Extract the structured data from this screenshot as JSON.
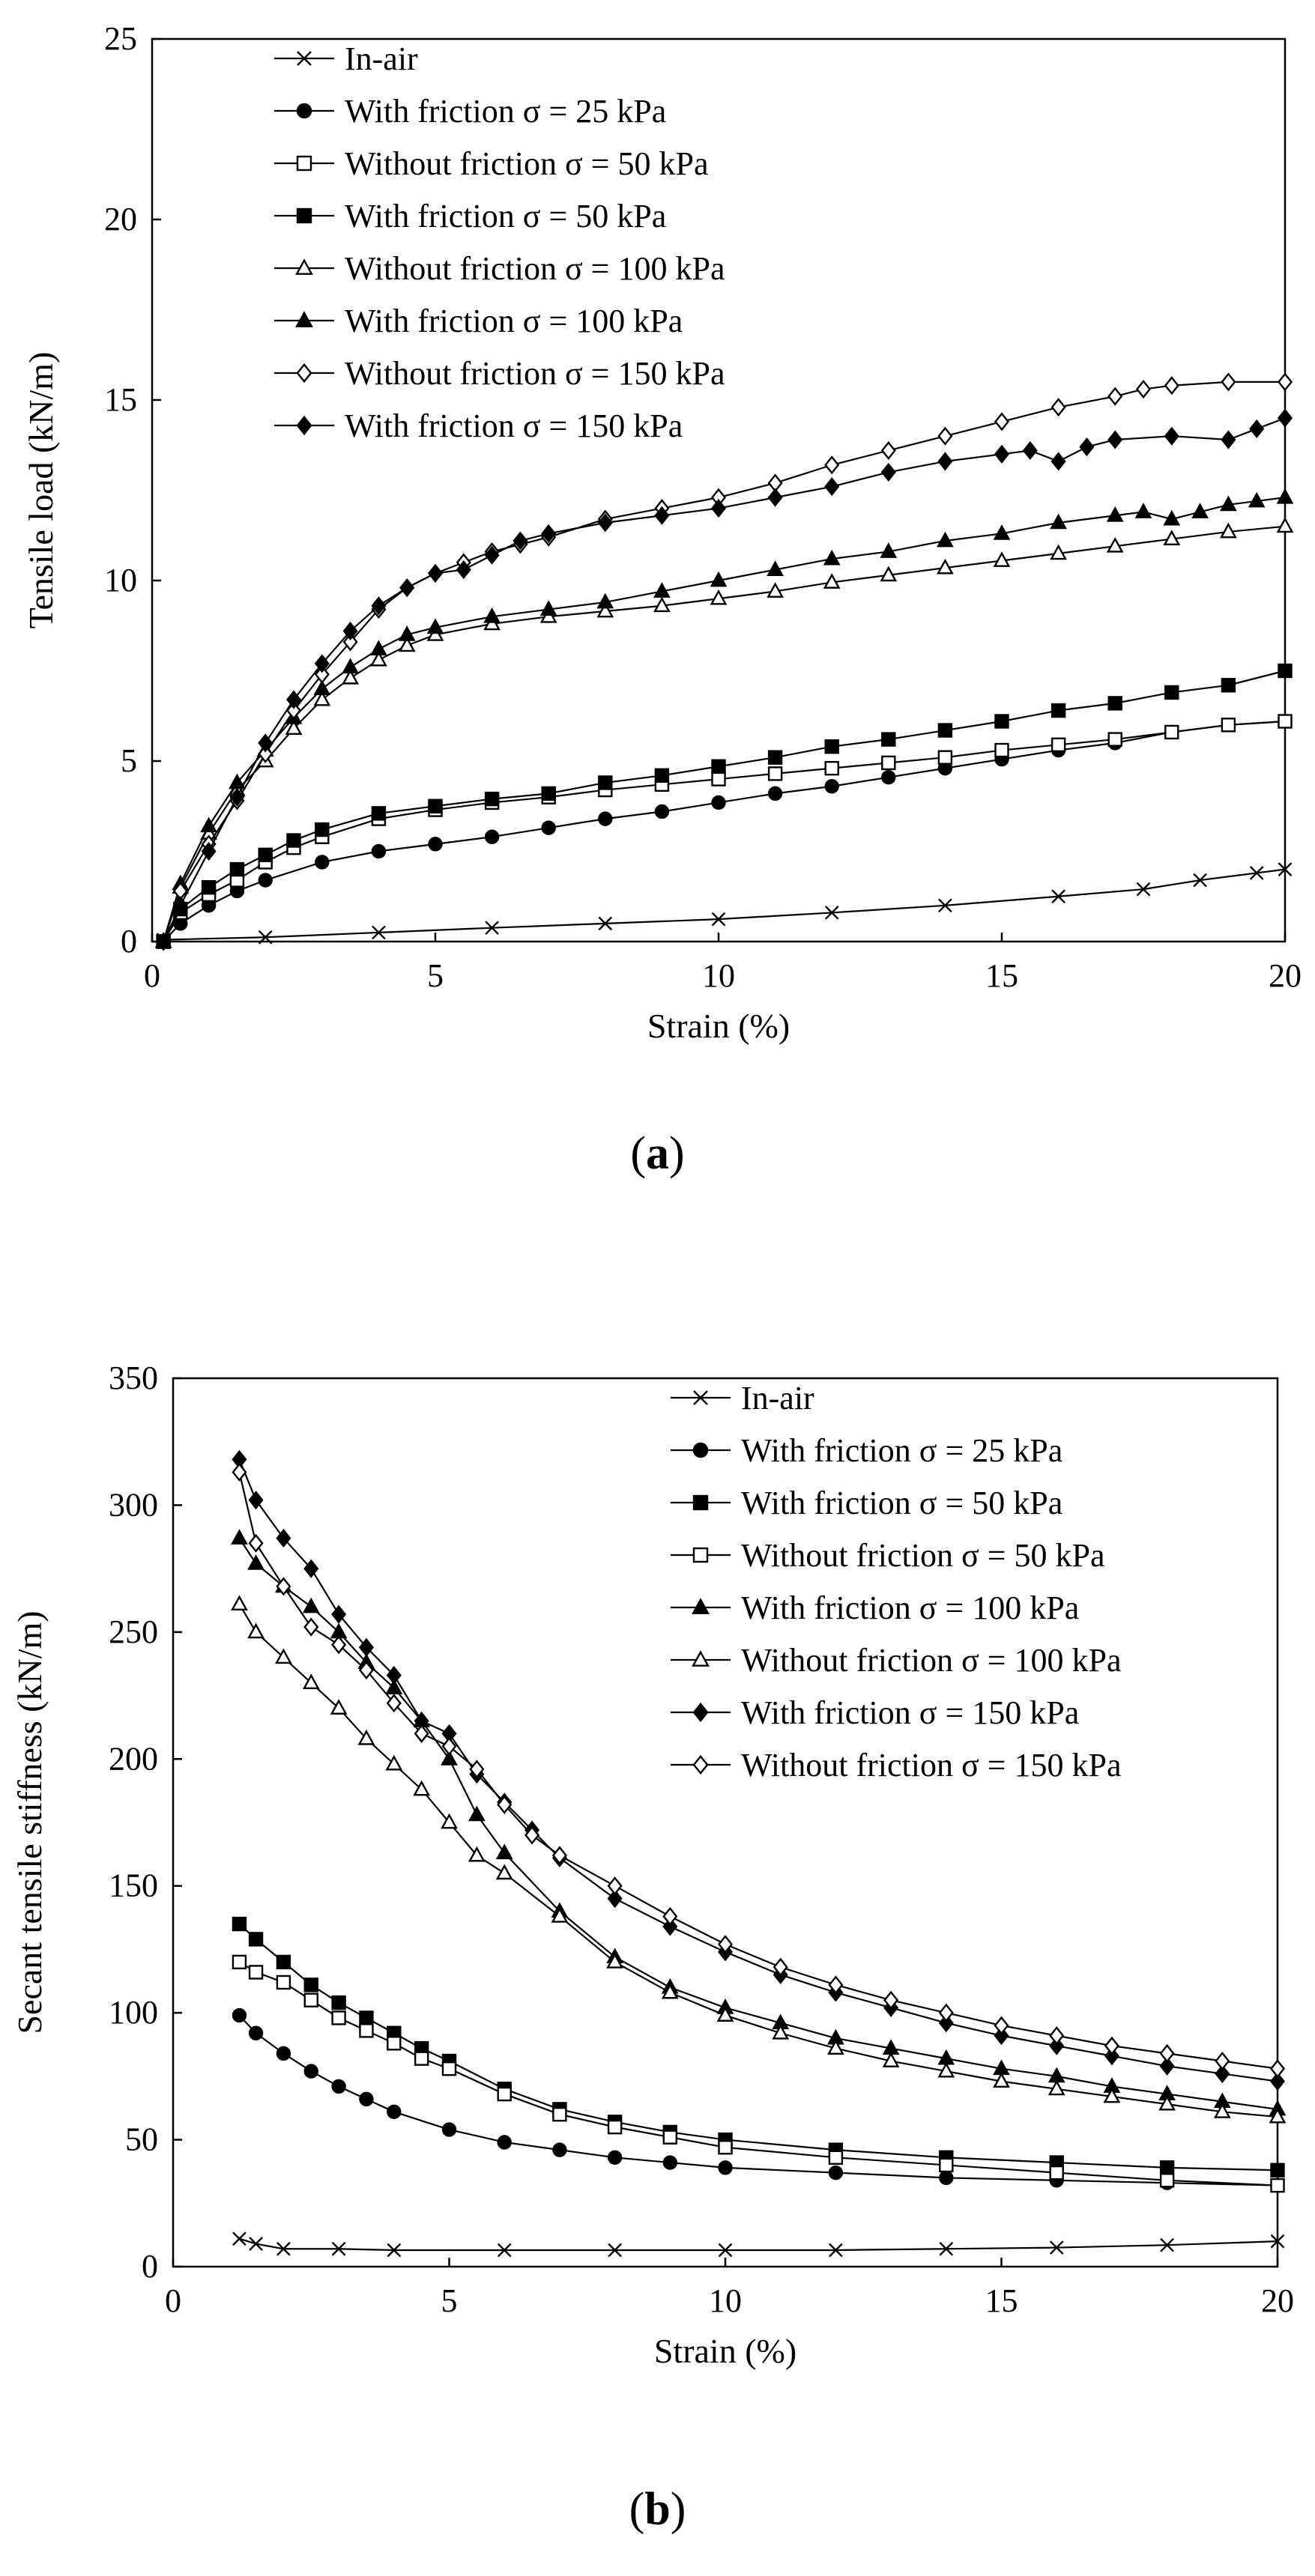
{
  "chart_data": [
    {
      "id": "a",
      "type": "line",
      "caption": "a",
      "xlabel": "Strain (%)",
      "ylabel": "Tensile load (kN/m)",
      "xlim": [
        0,
        20
      ],
      "ylim": [
        0,
        25
      ],
      "xticks": [
        0,
        5,
        10,
        15,
        20
      ],
      "yticks": [
        0,
        5,
        10,
        15,
        20,
        25
      ],
      "legend_position": "top-left",
      "series": [
        {
          "name": "In-air",
          "marker": "x",
          "x": [
            0.2,
            2,
            4,
            6,
            8,
            10,
            12,
            14,
            16,
            17.5,
            18.5,
            19.5,
            20
          ],
          "y": [
            0.05,
            0.12,
            0.25,
            0.38,
            0.5,
            0.62,
            0.8,
            1.0,
            1.25,
            1.45,
            1.7,
            1.9,
            2.0
          ]
        },
        {
          "name": "With friction σ = 25 kPa",
          "marker": "circle-filled",
          "x": [
            0.2,
            0.5,
            1,
            1.5,
            2,
            3,
            4,
            5,
            6,
            7,
            8,
            9,
            10,
            11,
            12,
            13,
            14,
            15,
            16,
            17,
            18,
            19,
            20
          ],
          "y": [
            0,
            0.5,
            1.0,
            1.4,
            1.7,
            2.2,
            2.5,
            2.7,
            2.9,
            3.15,
            3.4,
            3.6,
            3.85,
            4.1,
            4.3,
            4.55,
            4.8,
            5.05,
            5.3,
            5.5,
            5.8,
            6.0,
            6.1
          ]
        },
        {
          "name": "Without friction σ = 50 kPa",
          "marker": "square-open",
          "x": [
            0.2,
            0.5,
            1,
            1.5,
            2,
            2.5,
            3,
            4,
            5,
            6,
            7,
            8,
            9,
            10,
            11,
            12,
            13,
            14,
            15,
            16,
            17,
            18,
            19,
            20
          ],
          "y": [
            0,
            0.8,
            1.3,
            1.7,
            2.2,
            2.6,
            2.9,
            3.4,
            3.65,
            3.85,
            4.0,
            4.2,
            4.35,
            4.5,
            4.65,
            4.8,
            4.95,
            5.1,
            5.3,
            5.45,
            5.6,
            5.8,
            6.0,
            6.1
          ]
        },
        {
          "name": "With friction σ = 50 kPa",
          "marker": "square-filled",
          "x": [
            0.2,
            0.5,
            1,
            1.5,
            2,
            2.5,
            3,
            4,
            5,
            6,
            7,
            8,
            9,
            10,
            11,
            12,
            13,
            14,
            15,
            16,
            17,
            18,
            19,
            20
          ],
          "y": [
            0,
            0.9,
            1.5,
            2.0,
            2.4,
            2.8,
            3.1,
            3.55,
            3.75,
            3.95,
            4.1,
            4.4,
            4.6,
            4.85,
            5.1,
            5.4,
            5.6,
            5.85,
            6.1,
            6.4,
            6.6,
            6.9,
            7.1,
            7.5
          ]
        },
        {
          "name": "Without friction σ = 100 kPa",
          "marker": "triangle-open",
          "x": [
            0.2,
            0.5,
            1,
            1.5,
            2,
            2.5,
            3,
            3.5,
            4,
            4.5,
            5,
            6,
            7,
            8,
            9,
            10,
            11,
            12,
            13,
            14,
            15,
            16,
            17,
            18,
            19,
            20
          ],
          "y": [
            0,
            1.5,
            3.0,
            4.2,
            5.0,
            5.9,
            6.7,
            7.3,
            7.8,
            8.2,
            8.5,
            8.8,
            9.0,
            9.15,
            9.3,
            9.5,
            9.7,
            9.95,
            10.15,
            10.35,
            10.55,
            10.75,
            10.95,
            11.15,
            11.35,
            11.5
          ]
        },
        {
          "name": "With friction σ = 100 kPa",
          "marker": "triangle-filled",
          "x": [
            0.2,
            0.5,
            1,
            1.5,
            2,
            2.5,
            3,
            3.5,
            4,
            4.5,
            5,
            6,
            7,
            8,
            9,
            10,
            11,
            12,
            13,
            14,
            15,
            16,
            17,
            17.5,
            18,
            18.5,
            19,
            19.5,
            20
          ],
          "y": [
            0,
            1.6,
            3.2,
            4.4,
            5.3,
            6.2,
            7.0,
            7.6,
            8.1,
            8.5,
            8.7,
            9.0,
            9.2,
            9.4,
            9.7,
            10.0,
            10.3,
            10.6,
            10.8,
            11.1,
            11.3,
            11.6,
            11.8,
            11.9,
            11.7,
            11.9,
            12.1,
            12.2,
            12.3
          ]
        },
        {
          "name": "Without friction σ = 150 kPa",
          "marker": "diamond-open",
          "x": [
            0.2,
            0.5,
            1,
            1.5,
            2,
            2.5,
            3,
            3.5,
            4,
            4.5,
            5,
            5.5,
            6,
            6.5,
            7,
            8,
            9,
            10,
            11,
            12,
            13,
            14,
            15,
            16,
            17,
            17.5,
            18,
            19,
            20
          ],
          "y": [
            0,
            1.4,
            2.7,
            3.9,
            5.2,
            6.4,
            7.4,
            8.3,
            9.2,
            9.8,
            10.2,
            10.5,
            10.8,
            11.0,
            11.2,
            11.7,
            12.0,
            12.3,
            12.7,
            13.2,
            13.6,
            14.0,
            14.4,
            14.8,
            15.1,
            15.3,
            15.4,
            15.5,
            15.5
          ]
        },
        {
          "name": "With friction σ = 150 kPa",
          "marker": "diamond-filled",
          "x": [
            0.2,
            0.5,
            1,
            1.5,
            2,
            2.5,
            3,
            3.5,
            4,
            4.5,
            5,
            5.5,
            6,
            6.5,
            7,
            8,
            9,
            10,
            11,
            12,
            13,
            14,
            15,
            15.5,
            16,
            16.5,
            17,
            18,
            19,
            19.5,
            20
          ],
          "y": [
            0,
            1.0,
            2.5,
            4.0,
            5.5,
            6.7,
            7.7,
            8.6,
            9.3,
            9.8,
            10.2,
            10.3,
            10.7,
            11.1,
            11.3,
            11.6,
            11.8,
            12.0,
            12.3,
            12.6,
            13.0,
            13.3,
            13.5,
            13.6,
            13.3,
            13.7,
            13.9,
            14.0,
            13.9,
            14.2,
            14.5
          ]
        }
      ]
    },
    {
      "id": "b",
      "type": "line",
      "caption": "b",
      "xlabel": "Strain (%)",
      "ylabel": "Secant tensile stiffness (kN/m)",
      "xlim": [
        0,
        20
      ],
      "ylim": [
        0,
        350
      ],
      "xticks": [
        0,
        5,
        10,
        15,
        20
      ],
      "yticks": [
        0,
        50,
        100,
        150,
        200,
        250,
        300,
        350
      ],
      "legend_position": "top-right",
      "series": [
        {
          "name": "In-air",
          "marker": "x",
          "x": [
            1.2,
            1.5,
            2,
            3,
            4,
            6,
            8,
            10,
            12,
            14,
            16,
            18,
            20
          ],
          "y": [
            11,
            9,
            7,
            7,
            6.5,
            6.5,
            6.5,
            6.5,
            6.5,
            7,
            7.5,
            8.5,
            10
          ]
        },
        {
          "name": "With friction σ = 25 kPa",
          "marker": "circle-filled",
          "x": [
            1.2,
            1.5,
            2,
            2.5,
            3,
            3.5,
            4,
            5,
            6,
            7,
            8,
            9,
            10,
            12,
            14,
            16,
            18,
            20
          ],
          "y": [
            99,
            92,
            84,
            77,
            71,
            66,
            61,
            54,
            49,
            46,
            43,
            41,
            39,
            37,
            35,
            34,
            33,
            32
          ]
        },
        {
          "name": "With friction σ = 50 kPa",
          "marker": "square-filled",
          "x": [
            1.2,
            1.5,
            2,
            2.5,
            3,
            3.5,
            4,
            4.5,
            5,
            6,
            7,
            8,
            9,
            10,
            12,
            14,
            16,
            18,
            20
          ],
          "y": [
            135,
            129,
            120,
            111,
            104,
            98,
            92,
            86,
            81,
            70,
            62,
            57,
            53,
            50,
            46,
            43,
            41,
            39,
            38
          ]
        },
        {
          "name": "Without friction σ = 50 kPa",
          "marker": "square-open",
          "x": [
            1.2,
            1.5,
            2,
            2.5,
            3,
            3.5,
            4,
            4.5,
            5,
            6,
            7,
            8,
            9,
            10,
            12,
            14,
            16,
            18,
            20
          ],
          "y": [
            120,
            116,
            112,
            105,
            98,
            93,
            88,
            82,
            78,
            68,
            60,
            55,
            51,
            47,
            43,
            40,
            37,
            34,
            32
          ]
        },
        {
          "name": "With friction σ = 100 kPa",
          "marker": "triangle-filled",
          "x": [
            1.2,
            1.5,
            2,
            2.5,
            3,
            3.5,
            4,
            4.5,
            5,
            5.5,
            6,
            7,
            8,
            9,
            10,
            11,
            12,
            13,
            14,
            15,
            16,
            17,
            18,
            19,
            20
          ],
          "y": [
            287,
            277,
            268,
            260,
            250,
            238,
            228,
            215,
            200,
            178,
            163,
            140,
            122,
            110,
            102,
            96,
            90,
            86,
            82,
            78,
            75,
            71,
            68,
            65,
            62
          ]
        },
        {
          "name": "Without friction σ = 100 kPa",
          "marker": "triangle-open",
          "x": [
            1.2,
            1.5,
            2,
            2.5,
            3,
            3.5,
            4,
            4.5,
            5,
            5.5,
            6,
            7,
            8,
            9,
            10,
            11,
            12,
            13,
            14,
            15,
            16,
            17,
            18,
            19,
            20
          ],
          "y": [
            261,
            250,
            240,
            230,
            220,
            208,
            198,
            188,
            175,
            162,
            155,
            138,
            120,
            108,
            99,
            92,
            86,
            81,
            77,
            73,
            70,
            67,
            64,
            61,
            59
          ]
        },
        {
          "name": "With friction σ = 150 kPa",
          "marker": "diamond-filled",
          "x": [
            1.2,
            1.5,
            2,
            2.5,
            3,
            3.5,
            4,
            4.5,
            5,
            5.5,
            6,
            6.5,
            7,
            8,
            9,
            10,
            11,
            12,
            13,
            14,
            15,
            16,
            17,
            18,
            19,
            20
          ],
          "y": [
            318,
            302,
            287,
            275,
            257,
            244,
            233,
            215,
            210,
            194,
            183,
            172,
            161,
            145,
            134,
            124,
            115,
            108,
            102,
            96,
            91,
            87,
            83,
            79,
            76,
            73
          ]
        },
        {
          "name": "Without friction σ = 150 kPa",
          "marker": "diamond-open",
          "x": [
            1.2,
            1.5,
            2,
            2.5,
            3,
            3.5,
            4,
            4.5,
            5,
            5.5,
            6,
            6.5,
            7,
            8,
            9,
            10,
            11,
            12,
            13,
            14,
            15,
            16,
            17,
            18,
            19,
            20
          ],
          "y": [
            313,
            285,
            268,
            252,
            245,
            235,
            222,
            210,
            205,
            196,
            182,
            170,
            162,
            150,
            138,
            127,
            118,
            111,
            105,
            100,
            95,
            91,
            87,
            84,
            81,
            78
          ]
        }
      ]
    }
  ]
}
